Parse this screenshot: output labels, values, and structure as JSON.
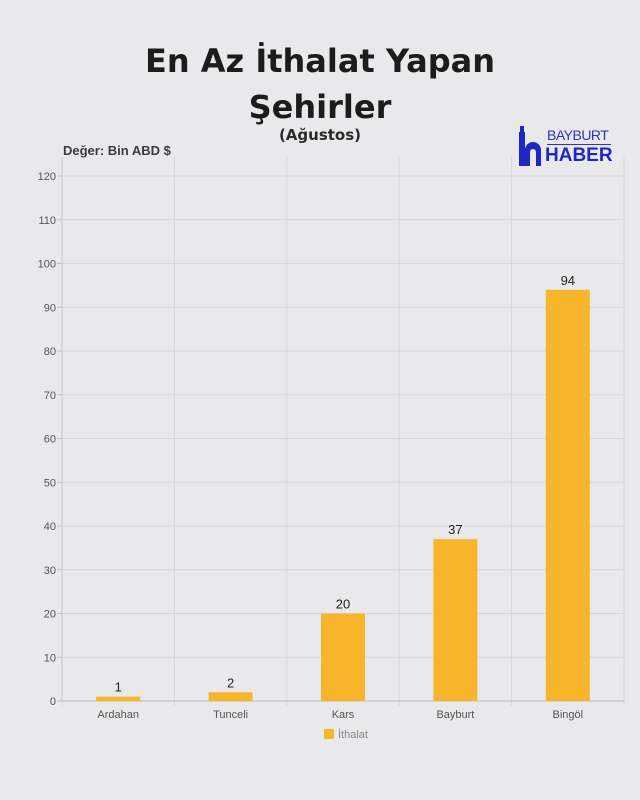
{
  "header": {
    "title_line1": "En Az İthalat Yapan",
    "title_line2": "Şehirler",
    "subtitle": "(Ağustos)",
    "unit_label": "Değer: Bin  ABD $"
  },
  "logo": {
    "line1": "BAYBURT",
    "line2": "HABER",
    "color": "#1d28c4"
  },
  "chart_data": {
    "type": "bar",
    "title": "En Az İthalat Yapan Şehirler",
    "subtitle": "(Ağustos)",
    "ylabel": "Değer: Bin ABD $",
    "xlabel": "",
    "categories": [
      "Ardahan",
      "Tunceli",
      "Kars",
      "Bayburt",
      "Bingöl"
    ],
    "series": [
      {
        "name": "İthalat",
        "values": [
          1,
          2,
          20,
          37,
          94
        ],
        "color": "#f7b52c"
      }
    ],
    "ylim": [
      0,
      120
    ],
    "yticks": [
      0,
      10,
      20,
      30,
      40,
      50,
      60,
      70,
      80,
      90,
      100,
      110,
      120
    ],
    "grid": true,
    "legend": "bottom-center"
  }
}
